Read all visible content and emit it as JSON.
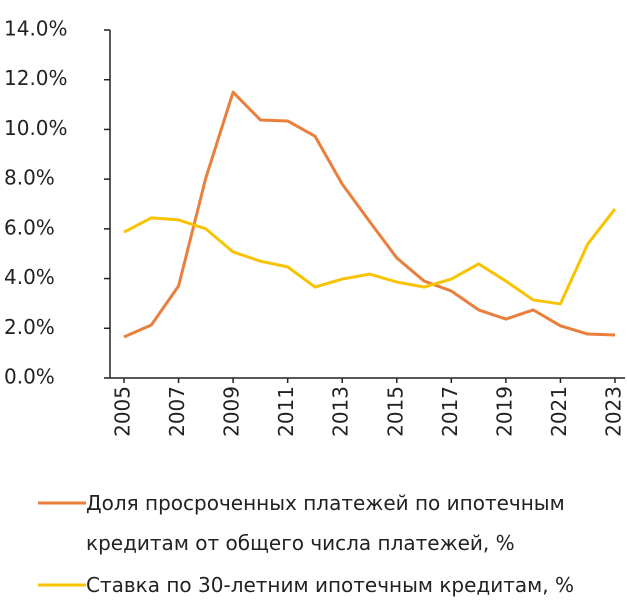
{
  "chart_data": {
    "type": "line",
    "x": [
      2005,
      2006,
      2007,
      2008,
      2009,
      2010,
      2011,
      2012,
      2013,
      2014,
      2015,
      2016,
      2017,
      2018,
      2019,
      2020,
      2021,
      2022,
      2023
    ],
    "xlim": [
      2005,
      2023
    ],
    "xticks": [
      2005,
      2007,
      2009,
      2011,
      2013,
      2015,
      2017,
      2019,
      2021,
      2023
    ],
    "ylim": [
      0,
      14
    ],
    "yticks": [
      {
        "value": 0,
        "label": "0.0%"
      },
      {
        "value": 2,
        "label": "2.0%"
      },
      {
        "value": 4,
        "label": "4.0%"
      },
      {
        "value": 6,
        "label": "6.0%"
      },
      {
        "value": 8,
        "label": "8.0%"
      },
      {
        "value": 10,
        "label": "10.0%"
      },
      {
        "value": 12,
        "label": "12.0%"
      },
      {
        "value": 14,
        "label": "14.0%"
      }
    ],
    "series": [
      {
        "name": "Доля просроченных платежей по ипотечным кредитам от общего числа платежей, %",
        "color": "#e97f3b",
        "values": [
          1.65,
          2.13,
          3.7,
          8.05,
          11.5,
          10.38,
          10.34,
          9.73,
          7.8,
          6.3,
          4.83,
          3.9,
          3.5,
          2.74,
          2.37,
          2.74,
          2.1,
          1.77,
          1.73
        ]
      },
      {
        "name": "Ставка по 30-летним ипотечным кредитам, %",
        "color": "#f8c300",
        "values": [
          5.87,
          6.44,
          6.36,
          6.0,
          5.07,
          4.7,
          4.47,
          3.66,
          3.98,
          4.18,
          3.86,
          3.66,
          3.98,
          4.59,
          3.9,
          3.14,
          2.98,
          5.39,
          6.8
        ]
      }
    ]
  }
}
